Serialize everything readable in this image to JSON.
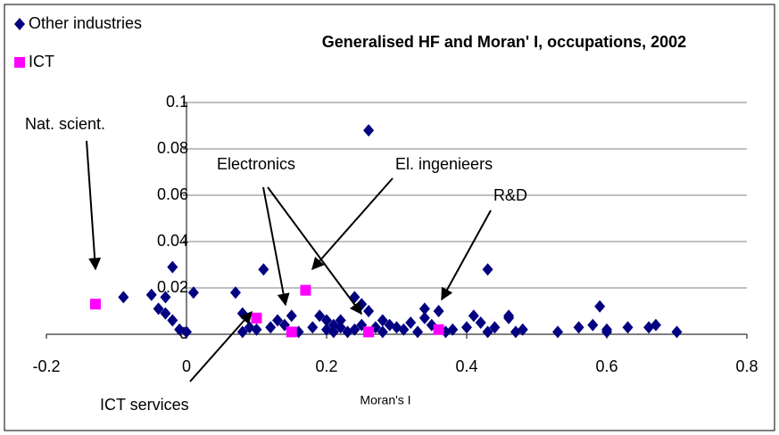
{
  "chart_data": {
    "type": "scatter",
    "title": "Generalised HF and Moran' I, occupations, 2002",
    "x_label": "Moran's I",
    "xlim": [
      -0.2,
      0.8
    ],
    "xticks": [
      -0.2,
      0,
      0.2,
      0.4,
      0.6,
      0.8
    ],
    "ylim": [
      0,
      0.1
    ],
    "yticks": [
      0,
      0.02,
      0.04,
      0.06,
      0.08,
      0.1
    ],
    "grid": true,
    "legend": "top-left",
    "annotations": [
      "Nat. scient.",
      "Electronics",
      "El. ingenieers",
      "R&D",
      "ICT services"
    ],
    "series": [
      {
        "name": "Other industries",
        "color": "#000080",
        "marker": "diamond",
        "x": [
          -0.09,
          -0.05,
          -0.04,
          -0.03,
          -0.03,
          -0.02,
          -0.02,
          -0.01,
          0,
          0.01,
          0.07,
          0.08,
          0.08,
          0.09,
          0.1,
          0.11,
          0.12,
          0.13,
          0.14,
          0.15,
          0.16,
          0.18,
          0.19,
          0.2,
          0.2,
          0.21,
          0.21,
          0.22,
          0.22,
          0.23,
          0.24,
          0.24,
          0.25,
          0.25,
          0.26,
          0.26,
          0.27,
          0.28,
          0.28,
          0.29,
          0.3,
          0.31,
          0.32,
          0.33,
          0.34,
          0.34,
          0.35,
          0.36,
          0.37,
          0.38,
          0.4,
          0.41,
          0.42,
          0.43,
          0.43,
          0.44,
          0.46,
          0.46,
          0.47,
          0.48,
          0.53,
          0.56,
          0.58,
          0.59,
          0.6,
          0.6,
          0.63,
          0.66,
          0.67,
          0.7
        ],
        "values": [
          0.016,
          0.017,
          0.011,
          0.016,
          0.009,
          0.006,
          0.029,
          0.002,
          0.001,
          0.018,
          0.018,
          0.009,
          0.001,
          0.003,
          0.002,
          0.028,
          0.003,
          0.006,
          0.004,
          0.008,
          0.001,
          0.003,
          0.008,
          0.002,
          0.006,
          0.001,
          0.004,
          0.003,
          0.006,
          0.001,
          0.002,
          0.016,
          0.004,
          0.013,
          0.088,
          0.01,
          0.003,
          0.006,
          0.001,
          0.004,
          0.003,
          0.002,
          0.005,
          0.001,
          0.007,
          0.011,
          0.004,
          0.01,
          0.001,
          0.002,
          0.003,
          0.008,
          0.005,
          0.028,
          0.001,
          0.003,
          0.007,
          0.008,
          0.001,
          0.002,
          0.001,
          0.003,
          0.004,
          0.012,
          0.001,
          0.002,
          0.003,
          0.003,
          0.004,
          0.001
        ]
      },
      {
        "name": "ICT",
        "color": "#ff00ff",
        "marker": "square",
        "x": [
          -0.13,
          0.1,
          0.15,
          0.17,
          0.26,
          0.36
        ],
        "values": [
          0.013,
          0.007,
          0.001,
          0.019,
          0.001,
          0.002
        ]
      }
    ]
  }
}
